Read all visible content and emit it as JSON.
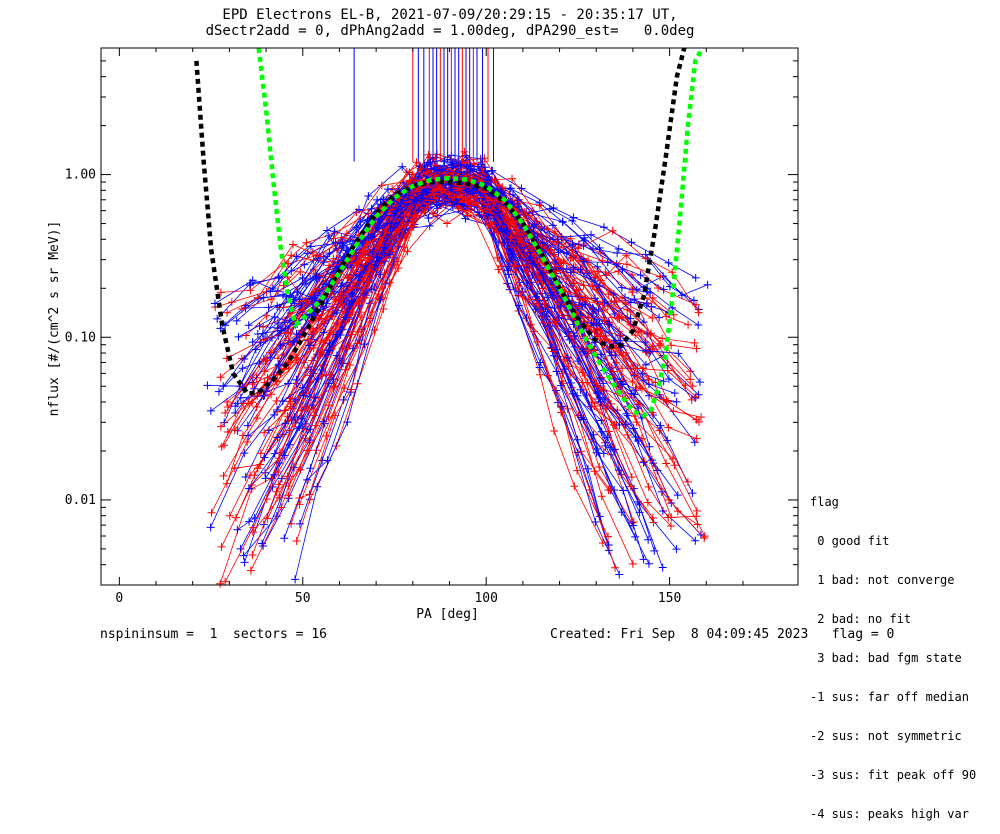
{
  "title_line1": "EPD Electrons EL-B, 2021-07-09/20:29:15 - 20:35:17 UT,",
  "title_line2": "dSectr2add = 0, dPhAng2add = 1.00deg, dPA290_est=   0.0deg",
  "footer_left": "nspininsum =  1  sectors = 16",
  "footer_right": "Created: Fri Sep  8 04:09:45 2023   flag = 0",
  "legend": {
    "title": "flag",
    "items": [
      " 0 good fit",
      " 1 bad: not converge",
      " 2 bad: no fit",
      " 3 bad: bad fgm state",
      "-1 sus: far off median",
      "-2 sus: not symmetric",
      "-3 sus: fit peak off 90",
      "-4 sus: peaks high var"
    ]
  },
  "colors": {
    "blue": "#0000ff",
    "red": "#ff0000",
    "black_fit": "#000000",
    "green_fit": "#00ff00"
  },
  "chart_data": {
    "type": "line",
    "xlabel": "PA [deg]",
    "ylabel": "nflux [#/(cm^2 s sr MeV)]",
    "xlim": [
      -5,
      185
    ],
    "ylim_log": [
      0.003,
      6.0
    ],
    "x_ticks": [
      0,
      50,
      100,
      150
    ],
    "x_tick_labels": [
      "0",
      "50",
      "100",
      "150"
    ],
    "y_ticks": [
      0.01,
      0.1,
      1.0
    ],
    "y_tick_labels": [
      "0.01",
      "0.10",
      "1.00"
    ],
    "y_scale": "log",
    "series": [
      {
        "style": "dashed-black-fit",
        "x": [
          21,
          23,
          25,
          28,
          31,
          35,
          38,
          42,
          46,
          50,
          55,
          60,
          65,
          70,
          75,
          80,
          85,
          90,
          95,
          100,
          105,
          110,
          115,
          120,
          125,
          130,
          134,
          137,
          140,
          143,
          146,
          149,
          152,
          154
        ],
        "y": [
          5.0,
          1.2,
          0.35,
          0.12,
          0.06,
          0.045,
          0.046,
          0.055,
          0.07,
          0.1,
          0.16,
          0.26,
          0.4,
          0.58,
          0.75,
          0.85,
          0.9,
          0.9,
          0.88,
          0.82,
          0.68,
          0.5,
          0.33,
          0.2,
          0.13,
          0.095,
          0.088,
          0.09,
          0.11,
          0.18,
          0.45,
          1.3,
          4.0,
          8.0
        ]
      },
      {
        "style": "dashed-green-fit",
        "x": [
          38,
          40,
          42,
          44,
          46,
          48,
          50,
          55,
          60,
          65,
          70,
          75,
          80,
          85,
          90,
          95,
          100,
          105,
          110,
          115,
          120,
          125,
          130,
          135,
          140,
          143,
          145,
          147,
          149,
          151,
          153,
          155,
          157,
          159
        ],
        "y": [
          6.0,
          2.5,
          0.9,
          0.35,
          0.18,
          0.12,
          0.13,
          0.17,
          0.25,
          0.38,
          0.55,
          0.72,
          0.85,
          0.93,
          0.95,
          0.93,
          0.85,
          0.7,
          0.5,
          0.32,
          0.2,
          0.12,
          0.075,
          0.05,
          0.035,
          0.033,
          0.036,
          0.05,
          0.08,
          0.2,
          0.6,
          2.0,
          5.0,
          8.0
        ]
      }
    ],
    "traces_summary": {
      "count_per_color": 60,
      "pa_range_low": [
        25,
        50
      ],
      "pa_range_high": [
        130,
        160
      ],
      "peak_pa": [
        80,
        100
      ],
      "peak_flux_range": [
        0.65,
        1.05
      ],
      "low_flux_range": [
        0.004,
        0.2
      ]
    },
    "vertical_spikes": {
      "x": [
        64,
        80,
        81.5,
        83,
        84.5,
        85.5,
        86.5,
        87.5,
        88.5,
        89.5,
        90.5,
        91.5,
        92.5,
        93.5,
        94.5,
        95.5,
        96.5,
        97.5,
        99,
        100.5,
        102
      ],
      "y_bottom": 1.2
    }
  }
}
